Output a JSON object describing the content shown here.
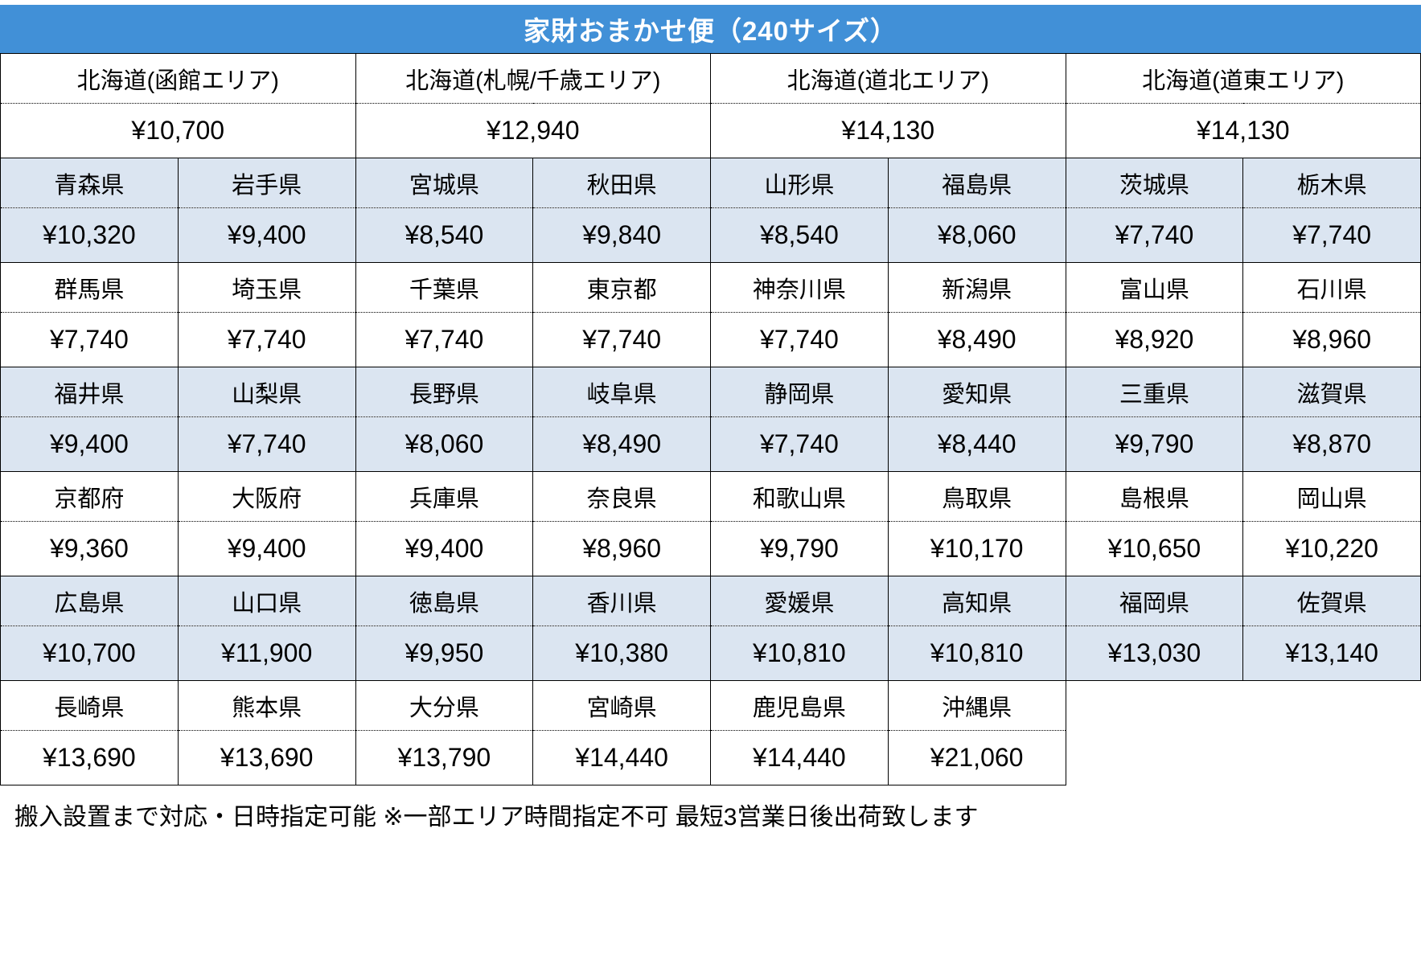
{
  "title": "家財おまかせ便（240サイズ）",
  "footer_note": "搬入設置まで対応・日時指定可能 ※一部エリア時間指定不可 最短3営業日後出荷致します",
  "colors": {
    "header_bg": "#4190d7",
    "header_text": "#ffffff",
    "shaded_row_bg": "#dbe5f1",
    "border": "#000000"
  },
  "hokkaido_areas": [
    {
      "area": "北海道(函館エリア)",
      "price": "¥10,700"
    },
    {
      "area": "北海道(札幌/千歳エリア)",
      "price": "¥12,940"
    },
    {
      "area": "北海道(道北エリア)",
      "price": "¥14,130"
    },
    {
      "area": "北海道(道東エリア)",
      "price": "¥14,130"
    }
  ],
  "prefecture_groups": [
    {
      "shaded": true,
      "cells": [
        {
          "name": "青森県",
          "price": "¥10,320"
        },
        {
          "name": "岩手県",
          "price": "¥9,400"
        },
        {
          "name": "宮城県",
          "price": "¥8,540"
        },
        {
          "name": "秋田県",
          "price": "¥9,840"
        },
        {
          "name": "山形県",
          "price": "¥8,540"
        },
        {
          "name": "福島県",
          "price": "¥8,060"
        },
        {
          "name": "茨城県",
          "price": "¥7,740"
        },
        {
          "name": "栃木県",
          "price": "¥7,740"
        }
      ]
    },
    {
      "shaded": false,
      "cells": [
        {
          "name": "群馬県",
          "price": "¥7,740"
        },
        {
          "name": "埼玉県",
          "price": "¥7,740"
        },
        {
          "name": "千葉県",
          "price": "¥7,740"
        },
        {
          "name": "東京都",
          "price": "¥7,740"
        },
        {
          "name": "神奈川県",
          "price": "¥7,740"
        },
        {
          "name": "新潟県",
          "price": "¥8,490"
        },
        {
          "name": "富山県",
          "price": "¥8,920"
        },
        {
          "name": "石川県",
          "price": "¥8,960"
        }
      ]
    },
    {
      "shaded": true,
      "cells": [
        {
          "name": "福井県",
          "price": "¥9,400"
        },
        {
          "name": "山梨県",
          "price": "¥7,740"
        },
        {
          "name": "長野県",
          "price": "¥8,060"
        },
        {
          "name": "岐阜県",
          "price": "¥8,490"
        },
        {
          "name": "静岡県",
          "price": "¥7,740"
        },
        {
          "name": "愛知県",
          "price": "¥8,440"
        },
        {
          "name": "三重県",
          "price": "¥9,790"
        },
        {
          "name": "滋賀県",
          "price": "¥8,870"
        }
      ]
    },
    {
      "shaded": false,
      "cells": [
        {
          "name": "京都府",
          "price": "¥9,360"
        },
        {
          "name": "大阪府",
          "price": "¥9,400"
        },
        {
          "name": "兵庫県",
          "price": "¥9,400"
        },
        {
          "name": "奈良県",
          "price": "¥8,960"
        },
        {
          "name": "和歌山県",
          "price": "¥9,790"
        },
        {
          "name": "鳥取県",
          "price": "¥10,170"
        },
        {
          "name": "島根県",
          "price": "¥10,650"
        },
        {
          "name": "岡山県",
          "price": "¥10,220"
        }
      ]
    },
    {
      "shaded": true,
      "cells": [
        {
          "name": "広島県",
          "price": "¥10,700"
        },
        {
          "name": "山口県",
          "price": "¥11,900"
        },
        {
          "name": "徳島県",
          "price": "¥9,950"
        },
        {
          "name": "香川県",
          "price": "¥10,380"
        },
        {
          "name": "愛媛県",
          "price": "¥10,810"
        },
        {
          "name": "高知県",
          "price": "¥10,810"
        },
        {
          "name": "福岡県",
          "price": "¥13,030"
        },
        {
          "name": "佐賀県",
          "price": "¥13,140"
        }
      ]
    },
    {
      "shaded": false,
      "cells": [
        {
          "name": "長崎県",
          "price": "¥13,690"
        },
        {
          "name": "熊本県",
          "price": "¥13,690"
        },
        {
          "name": "大分県",
          "price": "¥13,790"
        },
        {
          "name": "宮崎県",
          "price": "¥14,440"
        },
        {
          "name": "鹿児島県",
          "price": "¥14,440"
        },
        {
          "name": "沖縄県",
          "price": "¥21,060"
        }
      ]
    }
  ]
}
